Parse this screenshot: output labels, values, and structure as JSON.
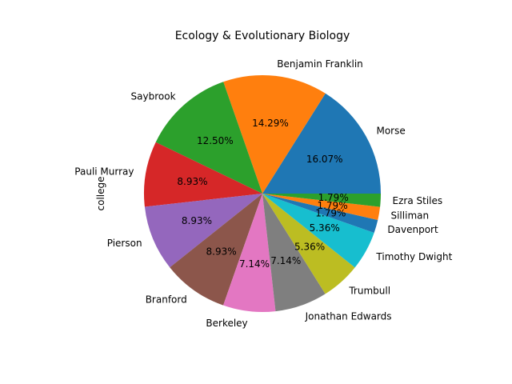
{
  "chart_data": {
    "type": "pie",
    "title": "Ecology & Evolutionary Biology",
    "ylabel": "college",
    "start_angle_deg": 0,
    "direction": "counterclockwise",
    "slices": [
      {
        "label": "Morse",
        "pct_label": "16.07%",
        "value": 16.07,
        "color": "#1f77b4"
      },
      {
        "label": "Benjamin Franklin",
        "pct_label": "14.29%",
        "value": 14.29,
        "color": "#ff7f0e"
      },
      {
        "label": "Saybrook",
        "pct_label": "12.50%",
        "value": 12.5,
        "color": "#2ca02c"
      },
      {
        "label": "Pauli Murray",
        "pct_label": "8.93%",
        "value": 8.93,
        "color": "#d62728"
      },
      {
        "label": "Pierson",
        "pct_label": "8.93%",
        "value": 8.93,
        "color": "#9467bd"
      },
      {
        "label": "Branford",
        "pct_label": "8.93%",
        "value": 8.93,
        "color": "#8c564b"
      },
      {
        "label": "Berkeley",
        "pct_label": "7.14%",
        "value": 7.14,
        "color": "#e377c2"
      },
      {
        "label": "Jonathan Edwards",
        "pct_label": "7.14%",
        "value": 7.14,
        "color": "#7f7f7f"
      },
      {
        "label": "Trumbull",
        "pct_label": "5.36%",
        "value": 5.36,
        "color": "#bcbd22"
      },
      {
        "label": "Timothy Dwight",
        "pct_label": "5.36%",
        "value": 5.36,
        "color": "#17becf"
      },
      {
        "label": "Davenport",
        "pct_label": "1.79%",
        "value": 1.79,
        "color": "#1f77b4"
      },
      {
        "label": "Silliman",
        "pct_label": "1.79%",
        "value": 1.79,
        "color": "#ff7f0e"
      },
      {
        "label": "Ezra Stiles",
        "pct_label": "1.79%",
        "value": 1.79,
        "color": "#2ca02c"
      }
    ]
  }
}
